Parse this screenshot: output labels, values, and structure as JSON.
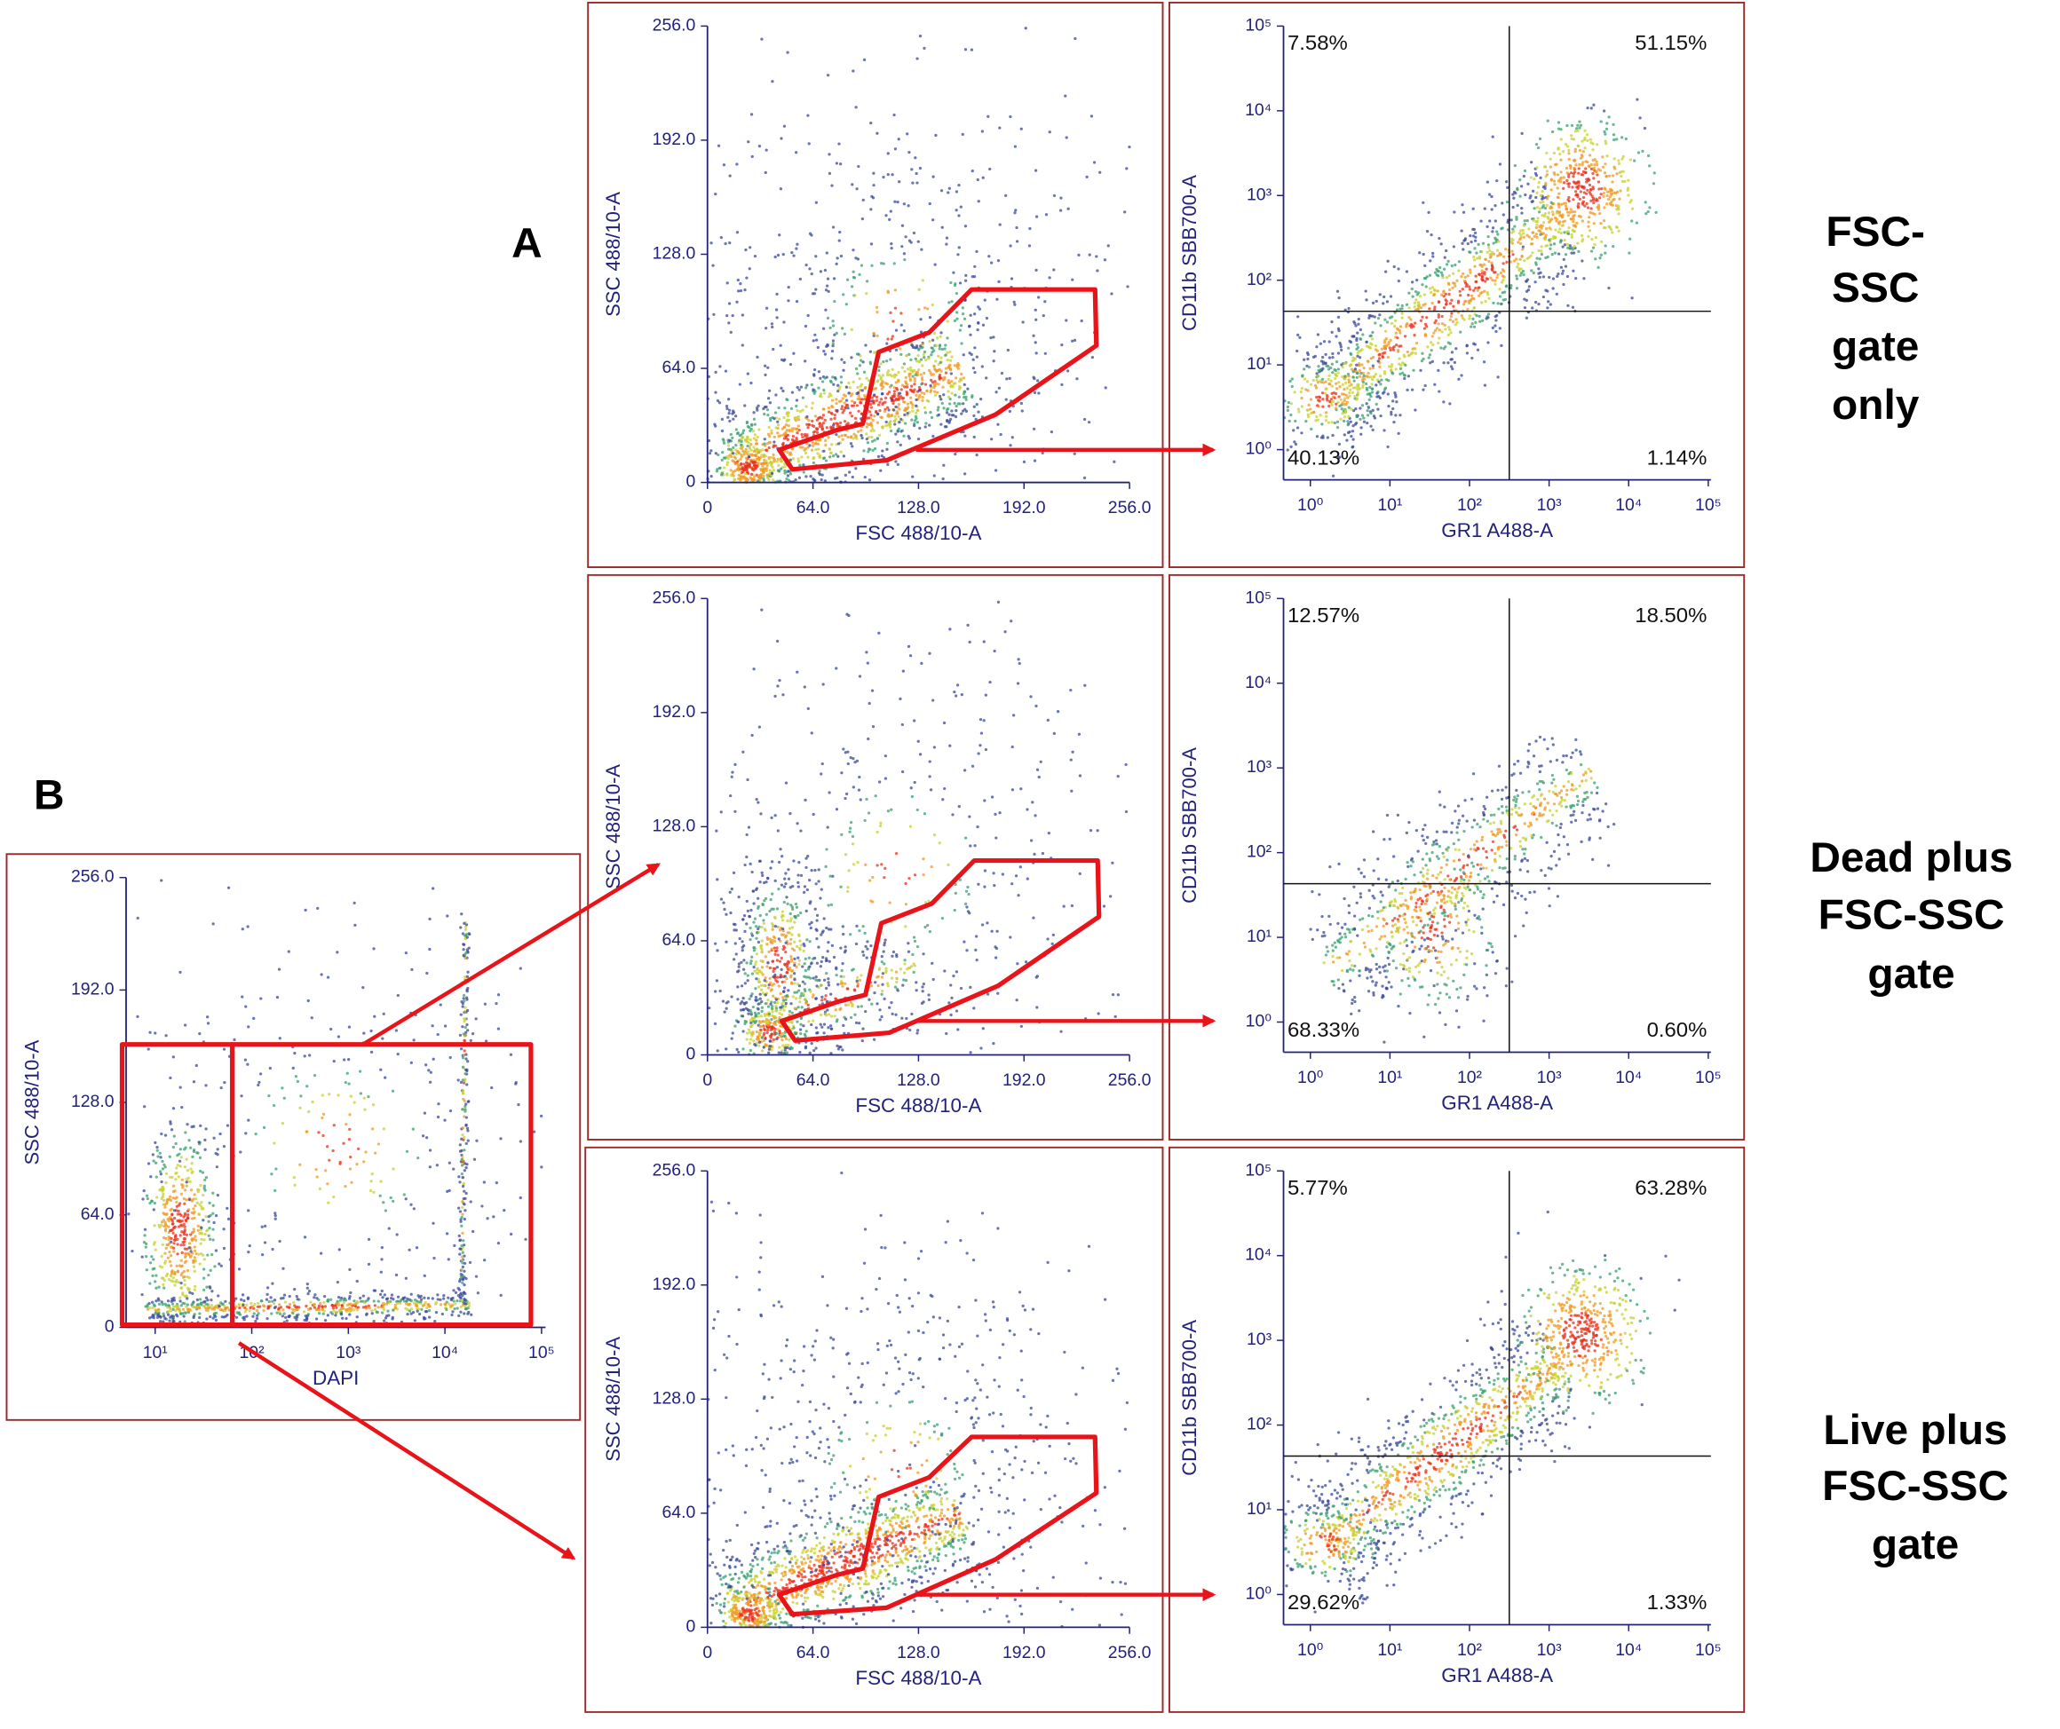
{
  "chart_data": [
    {
      "type": "scatter",
      "xlabel": "FSC 488/10-A",
      "ylabel": "SSC 488/10-A",
      "xlim": [
        0,
        256
      ],
      "ylim": [
        0,
        256
      ],
      "xticks": [
        0,
        {
          "value": 64,
          "label": "64.0"
        },
        {
          "value": 128,
          "label": "128.0"
        },
        {
          "value": 192,
          "label": "192.0"
        },
        {
          "value": 256,
          "label": "256.0"
        }
      ],
      "yticks": [
        0,
        {
          "value": 64,
          "label": "64.0"
        },
        {
          "value": 128,
          "label": "128.0"
        },
        {
          "value": 192,
          "label": "192.0"
        },
        {
          "value": 256,
          "label": "256.0"
        }
      ]
    },
    {
      "type": "scatter",
      "log_scale": true,
      "xlabel": "GR1 A488-A",
      "ylabel": "CD11b SBB700-A",
      "xlim": [
        0.46,
        108000
      ],
      "ylim": [
        0.44,
        100000
      ],
      "xticks": [
        {
          "value": 1,
          "label": "10⁰"
        },
        {
          "value": 10,
          "label": "10¹"
        },
        {
          "value": 100,
          "label": "10²"
        },
        {
          "value": 1000,
          "label": "10³"
        },
        {
          "value": 10000,
          "label": "10⁴"
        },
        {
          "value": 100000,
          "label": "10⁵"
        }
      ],
      "yticks": [
        {
          "value": 1,
          "label": "10⁰"
        },
        {
          "value": 10,
          "label": "10¹"
        },
        {
          "value": 100,
          "label": "10²"
        },
        {
          "value": 1000,
          "label": "10³"
        },
        {
          "value": 10000,
          "label": "10⁴"
        },
        {
          "value": 100000,
          "label": "10⁵"
        }
      ],
      "gate_x": 316,
      "gate_y": 43,
      "quadrants": {
        "ul": "7.58%",
        "ur": "51.15%",
        "ll": "40.13%",
        "lr": "1.14%"
      }
    },
    {
      "type": "scatter",
      "xlabel": "FSC 488/10-A",
      "ylabel": "SSC 488/10-A",
      "xlim": [
        0,
        256
      ],
      "ylim": [
        0,
        256
      ],
      "xticks": [
        0,
        {
          "value": 64,
          "label": "64.0"
        },
        {
          "value": 128,
          "label": "128.0"
        },
        {
          "value": 192,
          "label": "192.0"
        },
        {
          "value": 256,
          "label": "256.0"
        }
      ],
      "yticks": [
        0,
        {
          "value": 64,
          "label": "64.0"
        },
        {
          "value": 128,
          "label": "128.0"
        },
        {
          "value": 192,
          "label": "192.0"
        },
        {
          "value": 256,
          "label": "256.0"
        }
      ]
    },
    {
      "type": "scatter",
      "log_scale": true,
      "xlabel": "GR1 A488-A",
      "ylabel": "CD11b SBB700-A",
      "xlim": [
        0.46,
        108000
      ],
      "ylim": [
        0.44,
        100000
      ],
      "xticks": [
        {
          "value": 1,
          "label": "10⁰"
        },
        {
          "value": 10,
          "label": "10¹"
        },
        {
          "value": 100,
          "label": "10²"
        },
        {
          "value": 1000,
          "label": "10³"
        },
        {
          "value": 10000,
          "label": "10⁴"
        },
        {
          "value": 100000,
          "label": "10⁵"
        }
      ],
      "yticks": [
        {
          "value": 1,
          "label": "10⁰"
        },
        {
          "value": 10,
          "label": "10¹"
        },
        {
          "value": 100,
          "label": "10²"
        },
        {
          "value": 1000,
          "label": "10³"
        },
        {
          "value": 10000,
          "label": "10⁴"
        },
        {
          "value": 100000,
          "label": "10⁵"
        }
      ],
      "gate_x": 316,
      "gate_y": 43,
      "quadrants": {
        "ul": "12.57%",
        "ur": "18.50%",
        "ll": "68.33%",
        "lr": "0.60%"
      }
    },
    {
      "type": "scatter",
      "xlabel": "FSC 488/10-A",
      "ylabel": "SSC 488/10-A",
      "xlim": [
        0,
        256
      ],
      "ylim": [
        0,
        256
      ],
      "xticks": [
        0,
        {
          "value": 64,
          "label": "64.0"
        },
        {
          "value": 128,
          "label": "128.0"
        },
        {
          "value": 192,
          "label": "192.0"
        },
        {
          "value": 256,
          "label": "256.0"
        }
      ],
      "yticks": [
        0,
        {
          "value": 64,
          "label": "64.0"
        },
        {
          "value": 128,
          "label": "128.0"
        },
        {
          "value": 192,
          "label": "192.0"
        },
        {
          "value": 256,
          "label": "256.0"
        }
      ]
    },
    {
      "type": "scatter",
      "log_scale": true,
      "xlabel": "GR1 A488-A",
      "ylabel": "CD11b SBB700-A",
      "xlim": [
        0.46,
        108000
      ],
      "ylim": [
        0.44,
        100000
      ],
      "xticks": [
        {
          "value": 1,
          "label": "10⁰"
        },
        {
          "value": 10,
          "label": "10¹"
        },
        {
          "value": 100,
          "label": "10²"
        },
        {
          "value": 1000,
          "label": "10³"
        },
        {
          "value": 10000,
          "label": "10⁴"
        },
        {
          "value": 100000,
          "label": "10⁵"
        }
      ],
      "yticks": [
        {
          "value": 1,
          "label": "10⁰"
        },
        {
          "value": 10,
          "label": "10¹"
        },
        {
          "value": 100,
          "label": "10²"
        },
        {
          "value": 1000,
          "label": "10³"
        },
        {
          "value": 10000,
          "label": "10⁴"
        },
        {
          "value": 100000,
          "label": "10⁵"
        }
      ],
      "gate_x": 316,
      "gate_y": 43,
      "quadrants": {
        "ul": "5.77%",
        "ur": "63.28%",
        "ll": "29.62%",
        "lr": "1.33%"
      }
    },
    {
      "type": "scatter",
      "xlog_scale": true,
      "xlabel": "DAPI",
      "ylabel": "SSC 488/10-A",
      "xlim": [
        5,
        110000
      ],
      "ylim": [
        0,
        256
      ],
      "xticks": [
        {
          "value": 10,
          "label": "10¹"
        },
        {
          "value": 100,
          "label": "10²"
        },
        {
          "value": 1000,
          "label": "10³"
        },
        {
          "value": 10000,
          "label": "10⁴"
        },
        {
          "value": 100000,
          "label": "10⁵"
        }
      ],
      "yticks": [
        0,
        {
          "value": 64,
          "label": "64.0"
        },
        {
          "value": 128,
          "label": "128.0"
        },
        {
          "value": 192,
          "label": "192.0"
        },
        {
          "value": 256,
          "label": "256.0"
        }
      ]
    }
  ],
  "panel_labels": [
    "A",
    "B"
  ],
  "row_labels": [
    [
      "FSC-",
      "SSC",
      "gate",
      "only"
    ],
    [
      "Dead plus",
      "FSC-SSC",
      "gate"
    ],
    [
      "Live plus",
      "FSC-SSC",
      "gate"
    ]
  ]
}
